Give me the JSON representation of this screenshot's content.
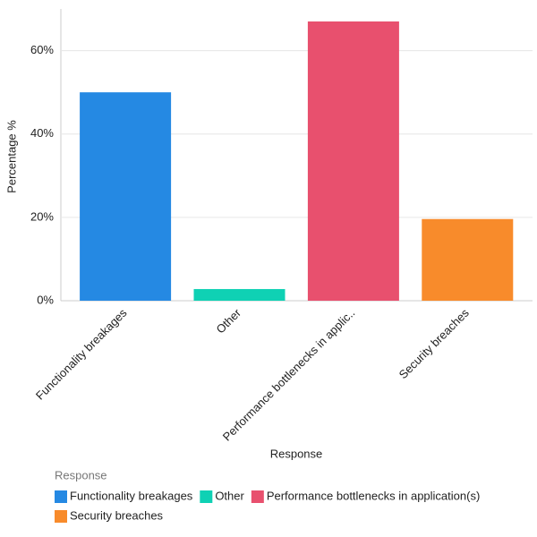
{
  "chart_data": {
    "type": "bar",
    "categories": [
      "Functionality breakages",
      "Other",
      "Performance bottlenecks in applic..",
      "Security breaches"
    ],
    "values": [
      50,
      2.8,
      67,
      19.6
    ],
    "colors": [
      "#2589e3",
      "#0fd1b4",
      "#e8506e",
      "#f88b2b"
    ],
    "x_label": "Response",
    "y_label": "Percentage %",
    "ylim": [
      0,
      70
    ],
    "yticks": [
      {
        "value": 0,
        "label": "0%"
      },
      {
        "value": 20,
        "label": "20%"
      },
      {
        "value": 40,
        "label": "40%"
      },
      {
        "value": 60,
        "label": "60%"
      }
    ],
    "grid": true,
    "legend": {
      "title": "Response",
      "labels": [
        "Functionality breakages",
        "Other",
        "Performance bottlenecks in application(s)",
        "Security breaches"
      ]
    }
  }
}
